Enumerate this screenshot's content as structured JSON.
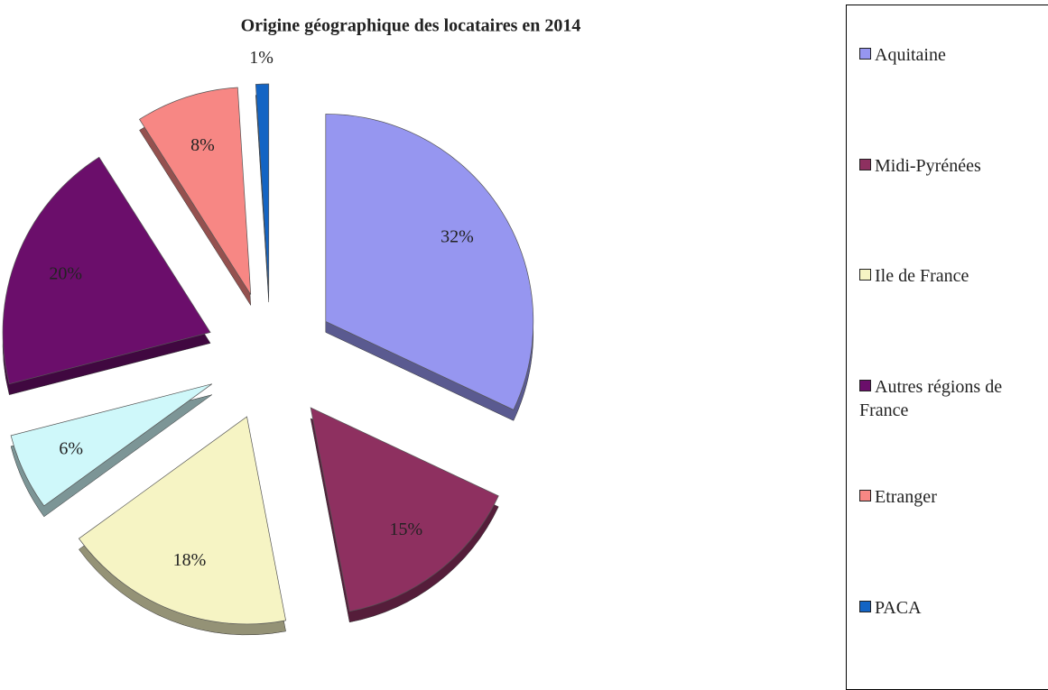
{
  "chart_data": {
    "type": "pie",
    "title": "Origine géographique des locataires en 2014",
    "categories": [
      "Aquitaine",
      "Midi-Pyrénées",
      "Ile de France",
      null,
      "Autres régions de France",
      "Etranger",
      "PACA"
    ],
    "values": [
      32,
      15,
      18,
      6,
      20,
      8,
      1
    ],
    "value_labels": [
      "32%",
      "15%",
      "18%",
      "6%",
      "20%",
      "8%",
      "1%"
    ],
    "colors": [
      "#9696f0",
      "#8e3060",
      "#f6f4c4",
      "#cff8fa",
      "#6b0e6b",
      "#f78784",
      "#1364c4"
    ],
    "legend": "right"
  }
}
